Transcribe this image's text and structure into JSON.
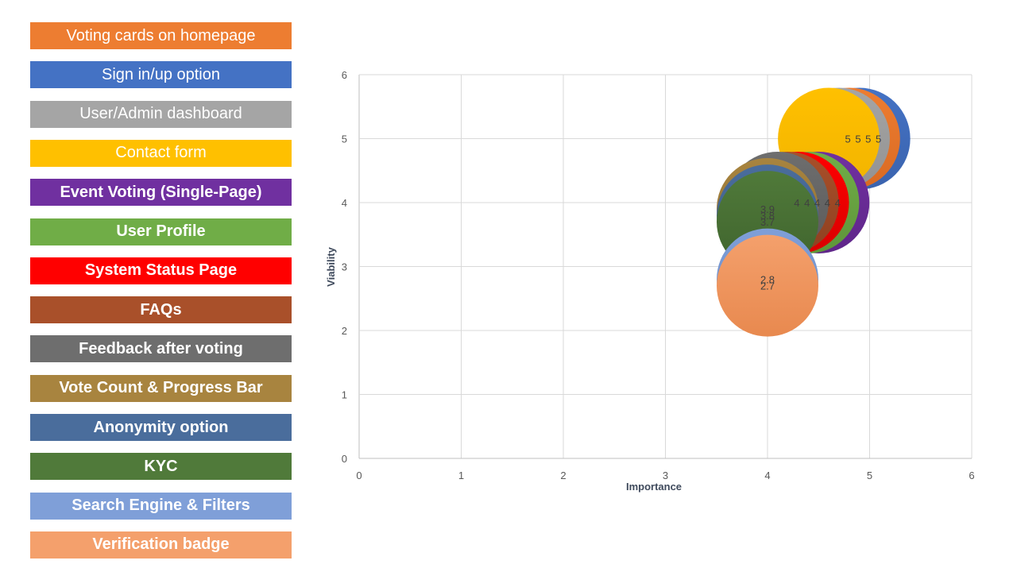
{
  "legend": {
    "items": [
      {
        "label": "Voting cards on homepage",
        "color": "#ED7D31",
        "bold": false
      },
      {
        "label": "Sign in/up option",
        "color": "#4472C4",
        "bold": false
      },
      {
        "label": "User/Admin dashboard",
        "color": "#A5A5A5",
        "bold": false
      },
      {
        "label": "Contact form",
        "color": "#FFC000",
        "bold": false
      },
      {
        "label": "Event Voting (Single-Page)",
        "color": "#7030A0",
        "bold": true
      },
      {
        "label": "User Profile",
        "color": "#70AD47",
        "bold": true
      },
      {
        "label": "System Status Page",
        "color": "#FF0000",
        "bold": true
      },
      {
        "label": "FAQs",
        "color": "#A9502A",
        "bold": true
      },
      {
        "label": "Feedback after voting",
        "color": "#6E6E6E",
        "bold": true
      },
      {
        "label": "Vote Count & Progress Bar",
        "color": "#A8843F",
        "bold": true
      },
      {
        "label": "Anonymity option",
        "color": "#4A6D9C",
        "bold": true
      },
      {
        "label": "KYC",
        "color": "#507A3A",
        "bold": true
      },
      {
        "label": "Search Engine & Filters",
        "color": "#7F9FD8",
        "bold": true
      },
      {
        "label": "Verification badge",
        "color": "#F4A06C",
        "bold": true
      }
    ]
  },
  "chart_data": {
    "type": "bubble",
    "xlabel": "Importance",
    "ylabel": "Viability",
    "xlim": [
      0,
      6
    ],
    "ylim": [
      0,
      6
    ],
    "xticks": [
      "0",
      "1",
      "2",
      "3",
      "4",
      "5",
      "6"
    ],
    "yticks": [
      "0",
      "1",
      "2",
      "3",
      "4",
      "5",
      "6"
    ],
    "grid": true,
    "series": [
      {
        "name": "Sign in/up option",
        "x": 4.9,
        "y": 5,
        "label": "5",
        "color": "#4472C4",
        "gradient": "#3A63AE"
      },
      {
        "name": "Voting cards on homepage",
        "x": 4.8,
        "y": 5,
        "label": "5",
        "color": "#ED7D31",
        "gradient": "#D96A22"
      },
      {
        "name": "User/Admin dashboard",
        "x": 4.7,
        "y": 5,
        "label": "5",
        "color": "#A5A5A5",
        "gradient": "#929292"
      },
      {
        "name": "Contact form",
        "x": 4.6,
        "y": 5,
        "label": "5",
        "color": "#FFC000",
        "gradient": "#F2B400"
      },
      {
        "name": "Event Voting (Single-Page)",
        "x": 4.5,
        "y": 4,
        "label": "4",
        "color": "#7030A0",
        "gradient": "#5F2689"
      },
      {
        "name": "User Profile",
        "x": 4.4,
        "y": 4,
        "label": "4",
        "color": "#70AD47",
        "gradient": "#5E963A"
      },
      {
        "name": "System Status Page",
        "x": 4.3,
        "y": 4,
        "label": "4",
        "color": "#FF0000",
        "gradient": "#D90000"
      },
      {
        "name": "FAQs",
        "x": 4.2,
        "y": 4,
        "label": "4",
        "color": "#A9502A",
        "gradient": "#8E4020"
      },
      {
        "name": "Feedback after voting",
        "x": 4.1,
        "y": 4,
        "label": "4",
        "color": "#6E6E6E",
        "gradient": "#5A5A5A"
      },
      {
        "name": "Vote Count & Progress Bar",
        "x": 4.0,
        "y": 3.9,
        "label": "3.9",
        "color": "#A8843F",
        "gradient": "#8E6E32"
      },
      {
        "name": "Anonymity option",
        "x": 4.0,
        "y": 3.8,
        "label": "3.8",
        "color": "#4A6D9C",
        "gradient": "#3C5B85"
      },
      {
        "name": "KYC",
        "x": 4.0,
        "y": 3.7,
        "label": "3.7",
        "color": "#507A3A",
        "gradient": "#3F632D"
      },
      {
        "name": "Search Engine & Filters",
        "x": 4.0,
        "y": 2.8,
        "label": "2.8",
        "color": "#7F9FD8",
        "gradient": "#6A8AC6"
      },
      {
        "name": "Verification badge",
        "x": 4.0,
        "y": 2.7,
        "label": "2.7",
        "color": "#F4A06C",
        "gradient": "#E8894F"
      }
    ]
  }
}
